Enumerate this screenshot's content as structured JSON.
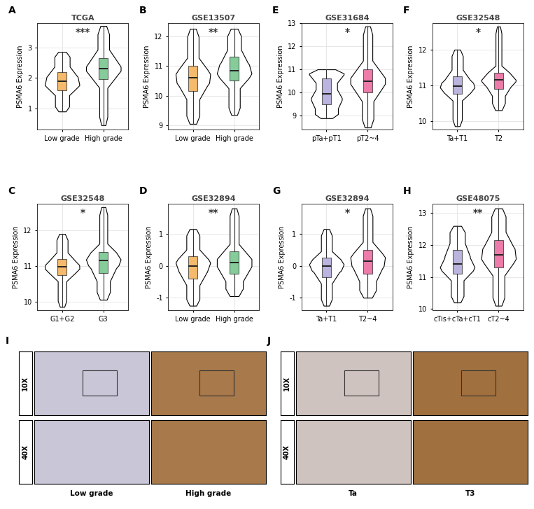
{
  "chart_data": [
    {
      "type": "violin_box",
      "panel": "A",
      "title": "TCGA",
      "ylabel": "PSMA6 Expression",
      "significance": "***",
      "categories": [
        "Low grade",
        "High grade"
      ],
      "colors": [
        "#F2A33A",
        "#5DBB7A"
      ],
      "stats": [
        {
          "min": 0.9,
          "q1": 1.6,
          "median": 1.88,
          "q3": 2.2,
          "max": 2.85
        },
        {
          "min": 0.45,
          "q1": 1.95,
          "median": 2.3,
          "q3": 2.65,
          "max": 3.7
        }
      ],
      "ylim": [
        0.3,
        3.8
      ],
      "yticks": [
        1,
        2,
        3
      ],
      "grid": true
    },
    {
      "type": "violin_box",
      "panel": "B",
      "title": "GSE13507",
      "ylabel": "PSMA6 Expression",
      "significance": "**",
      "categories": [
        "Low grade",
        "High grade"
      ],
      "colors": [
        "#F2A33A",
        "#5DBB7A"
      ],
      "stats": [
        {
          "min": 9.05,
          "q1": 10.15,
          "median": 10.6,
          "q3": 11.0,
          "max": 12.25
        },
        {
          "min": 9.35,
          "q1": 10.5,
          "median": 10.85,
          "q3": 11.3,
          "max": 12.25
        }
      ],
      "ylim": [
        8.85,
        12.45
      ],
      "yticks": [
        9,
        10,
        11,
        12
      ],
      "grid": true
    },
    {
      "type": "violin_box",
      "panel": "E",
      "title": "GSE31684",
      "ylabel": "PSMA6 Expression",
      "significance": "*",
      "categories": [
        "pTa+pT1",
        "pT2~4"
      ],
      "colors": [
        "#A59BD4",
        "#E8508F"
      ],
      "stats": [
        {
          "min": 8.9,
          "q1": 9.5,
          "median": 9.95,
          "q3": 10.6,
          "max": 11.0
        },
        {
          "min": 8.5,
          "q1": 10.0,
          "median": 10.5,
          "q3": 11.0,
          "max": 12.85
        }
      ],
      "ylim": [
        8.4,
        13.0
      ],
      "yticks": [
        9,
        10,
        11,
        12,
        13
      ],
      "grid": true
    },
    {
      "type": "violin_box",
      "panel": "F",
      "title": "GSE32548",
      "ylabel": "PSMA6 Expression",
      "significance": "*",
      "categories": [
        "Ta+T1",
        "T2"
      ],
      "colors": [
        "#A59BD4",
        "#E8508F"
      ],
      "stats": [
        {
          "min": 9.85,
          "q1": 10.75,
          "median": 10.97,
          "q3": 11.25,
          "max": 12.0
        },
        {
          "min": 10.3,
          "q1": 10.9,
          "median": 11.15,
          "q3": 11.35,
          "max": 12.65
        }
      ],
      "ylim": [
        9.75,
        12.75
      ],
      "yticks": [
        10,
        11,
        12
      ],
      "grid": true
    },
    {
      "type": "violin_box",
      "panel": "C",
      "title": "GSE32548",
      "ylabel": "PSMA6 Expression",
      "significance": "*",
      "categories": [
        "G1+G2",
        "G3"
      ],
      "colors": [
        "#F2A33A",
        "#5DBB7A"
      ],
      "stats": [
        {
          "min": 9.85,
          "q1": 10.75,
          "median": 10.97,
          "q3": 11.2,
          "max": 11.9
        },
        {
          "min": 10.05,
          "q1": 10.8,
          "median": 11.15,
          "q3": 11.4,
          "max": 12.65
        }
      ],
      "ylim": [
        9.75,
        12.75
      ],
      "yticks": [
        10,
        11,
        12
      ],
      "grid": true
    },
    {
      "type": "violin_box",
      "panel": "D",
      "title": "GSE32894",
      "ylabel": "PSMA6 Expression",
      "significance": "**",
      "categories": [
        "Low grade",
        "High grade"
      ],
      "colors": [
        "#F2A33A",
        "#5DBB7A"
      ],
      "stats": [
        {
          "min": -1.25,
          "q1": -0.4,
          "median": 0.0,
          "q3": 0.3,
          "max": 1.15
        },
        {
          "min": -0.95,
          "q1": -0.25,
          "median": 0.1,
          "q3": 0.45,
          "max": 1.8
        }
      ],
      "ylim": [
        -1.4,
        1.95
      ],
      "yticks": [
        -1,
        0,
        1
      ],
      "grid": true
    },
    {
      "type": "violin_box",
      "panel": "G",
      "title": "GSE32894",
      "ylabel": "PSMA6 Expression",
      "significance": "*",
      "categories": [
        "Ta+T1",
        "T2~4"
      ],
      "colors": [
        "#A59BD4",
        "#E8508F"
      ],
      "stats": [
        {
          "min": -1.25,
          "q1": -0.35,
          "median": 0.0,
          "q3": 0.25,
          "max": 1.15
        },
        {
          "min": -1.0,
          "q1": -0.25,
          "median": 0.15,
          "q3": 0.5,
          "max": 1.8
        }
      ],
      "ylim": [
        -1.4,
        1.95
      ],
      "yticks": [
        -1,
        0,
        1
      ],
      "grid": true
    },
    {
      "type": "violin_box",
      "panel": "H",
      "title": "GSE48075",
      "ylabel": "PSMA6 Expression",
      "significance": "**",
      "categories": [
        "cTis+cTa+cT1",
        "cT2~4"
      ],
      "colors": [
        "#A59BD4",
        "#E8508F"
      ],
      "stats": [
        {
          "min": 10.2,
          "q1": 11.1,
          "median": 11.4,
          "q3": 11.85,
          "max": 12.6
        },
        {
          "min": 10.1,
          "q1": 11.3,
          "median": 11.7,
          "q3": 12.15,
          "max": 13.15
        }
      ],
      "ylim": [
        9.95,
        13.3
      ],
      "yticks": [
        10,
        11,
        12,
        13
      ],
      "grid": true
    }
  ],
  "image_panels": [
    {
      "panel": "I",
      "magnifications": [
        "10X",
        "40X"
      ],
      "columns": [
        "Low grade",
        "High grade"
      ],
      "colors": [
        "#C9C6D8",
        "#A8794A"
      ]
    },
    {
      "panel": "J",
      "magnifications": [
        "10X",
        "40X"
      ],
      "columns": [
        "Ta",
        "T3"
      ],
      "colors": [
        "#CFC3BF",
        "#A0703F"
      ]
    }
  ]
}
